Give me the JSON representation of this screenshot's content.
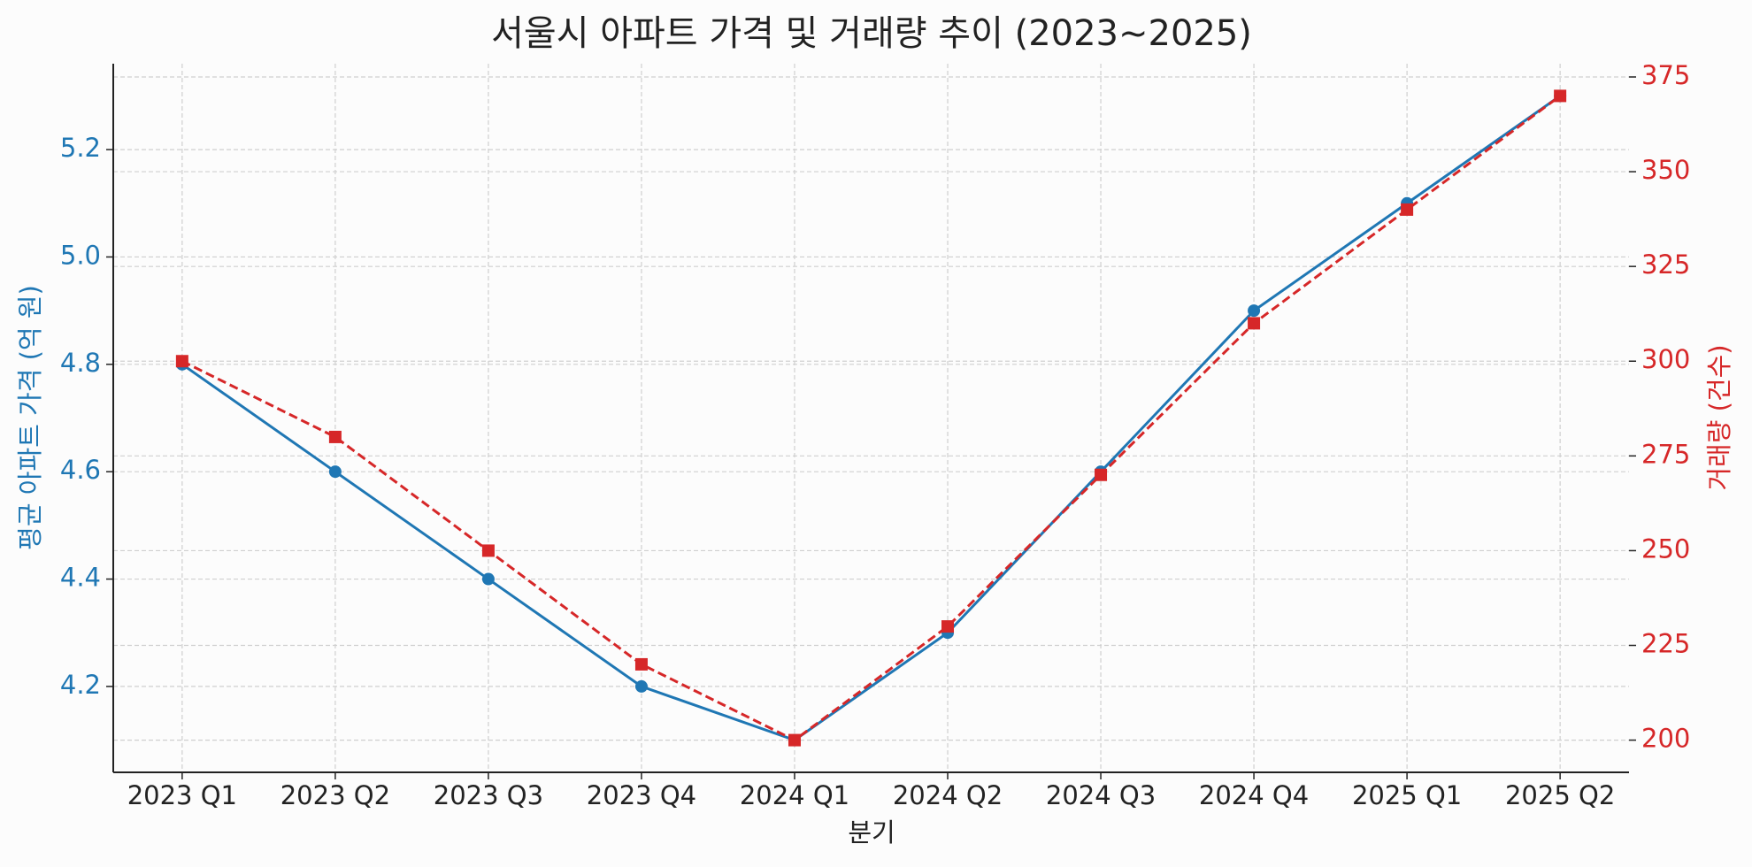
{
  "chart_data": {
    "type": "line",
    "title": "서울시 아파트 가격 및 거래량 추이 (2023~2025)",
    "xlabel": "분기",
    "ylabel": "평균 아파트 가격 (억 원)",
    "y2label": "거래량 (건수)",
    "categories": [
      "2023 Q1",
      "2023 Q2",
      "2023 Q3",
      "2023 Q4",
      "2024 Q1",
      "2024 Q2",
      "2024 Q3",
      "2024 Q4",
      "2025 Q1",
      "2025 Q2"
    ],
    "series": [
      {
        "name": "평균 아파트 가격",
        "color": "#1f77b4",
        "marker": "circle",
        "linestyle": "solid",
        "values": [
          4.8,
          4.6,
          4.4,
          4.2,
          4.1,
          4.3,
          4.6,
          4.9,
          5.1,
          5.3
        ]
      },
      {
        "name": "거래량",
        "color": "#d62728",
        "marker": "square",
        "linestyle": "dashed",
        "axis": "y2",
        "values": [
          300,
          280,
          250,
          220,
          200,
          230,
          270,
          310,
          340,
          370
        ]
      }
    ],
    "ylim": [
      4.04,
      5.36
    ],
    "yticks": [
      4.2,
      4.4,
      4.6,
      4.8,
      {
        "value": 5,
        "label": "5.0"
      },
      5.2
    ],
    "y2lim": [
      191.5,
      378.5
    ],
    "y2ticks": [
      200,
      225,
      250,
      275,
      300,
      325,
      350,
      375
    ],
    "grid": true
  }
}
